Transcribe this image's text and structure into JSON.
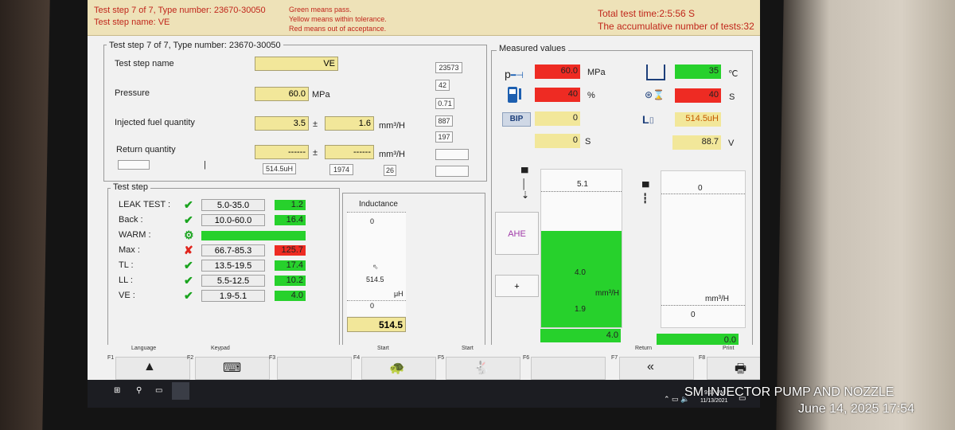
{
  "header": {
    "line1": "Test step 7 of 7, Type number: 23670-30050",
    "line2": "Test step name: VE",
    "legend": [
      "Green means pass.",
      "Yellow means within tolerance.",
      "Red means out of acceptance."
    ],
    "total_time": "Total test time:2:5:56 S",
    "accumulative": "The accumulative number of tests:32"
  },
  "step_panel": {
    "title": "Test step 7 of 7, Type number: 23670-30050",
    "step_name_label": "Test step name",
    "step_name_value": "VE",
    "pressure_label": "Pressure",
    "pressure_value": "60.0",
    "pressure_unit": "MPa",
    "injected_label": "Injected fuel quantity",
    "injected_value": "3.5",
    "injected_tol": "1.6",
    "pm": "±",
    "qty_unit": "mm³/H",
    "return_label": "Return quantity",
    "return_value": "------",
    "return_tol": "------",
    "return_unit": "mm³/H",
    "side_boxes": [
      "23573",
      "42",
      "0.71",
      "887",
      "197",
      "",
      ""
    ],
    "bottom_boxes": [
      "514.5uH",
      "1974",
      "26"
    ],
    "separator": "|"
  },
  "test_step": {
    "title": "Test step",
    "rows": [
      {
        "name": "LEAK TEST :",
        "status": "pass",
        "range": "5.0-35.0",
        "value": "1.2",
        "color": "#27d12c"
      },
      {
        "name": "Back :",
        "status": "pass",
        "range": "10.0-60.0",
        "value": "16.4",
        "color": "#27d12c"
      },
      {
        "name": "WARM :",
        "status": "running",
        "range": "",
        "value": "",
        "color": "#27d12c"
      },
      {
        "name": "Max :",
        "status": "fail",
        "range": "66.7-85.3",
        "value": "125.7",
        "color": "#ee2b23"
      },
      {
        "name": "TL :",
        "status": "pass",
        "range": "13.5-19.5",
        "value": "17.4",
        "color": "#27d12c"
      },
      {
        "name": "LL :",
        "status": "pass",
        "range": "5.5-12.5",
        "value": "10.2",
        "color": "#27d12c"
      },
      {
        "name": "VE :",
        "status": "pass",
        "range": "1.9-5.1",
        "value": "4.0",
        "color": "#27d12c"
      }
    ]
  },
  "inductance": {
    "title": "Inductance",
    "top": "0",
    "mid": "514.5",
    "unit": "μH",
    "bottom": "0",
    "readout": "514.5"
  },
  "measured": {
    "title": "Measured values",
    "p_label": "p",
    "p_value": "60.0",
    "p_unit": "MPa",
    "pump_value": "40",
    "pump_unit": "%",
    "bip_label": "BIP",
    "bip_value": "0",
    "s_value": "0",
    "s_unit": "S",
    "temp_value": "35",
    "temp_unit": "℃",
    "time_value": "40",
    "time_unit": "S",
    "l_label": "L",
    "l_value": "514.5uH",
    "volt_value": "88.7",
    "volt_unit": "V"
  },
  "gauges": {
    "left_top": "5.1",
    "left_value": "4.0",
    "left_unit": "mm³/H",
    "left_low": "1.9",
    "left_readout": "4.0",
    "left_fill_fraction": 0.61,
    "ahe_label": "AHE",
    "plus_label": "+",
    "right_top": "0",
    "right_unit": "mm³/H",
    "right_low": "0",
    "right_readout": "0.0"
  },
  "fkeys": [
    {
      "key": "F1",
      "label": "Language"
    },
    {
      "key": "F2",
      "label": "Keypad"
    },
    {
      "key": "F3",
      "label": ""
    },
    {
      "key": "F4",
      "label": "Start"
    },
    {
      "key": "F5",
      "label": "Start"
    },
    {
      "key": "F6",
      "label": ""
    },
    {
      "key": "F7",
      "label": "Return"
    },
    {
      "key": "F8",
      "label": "Print"
    }
  ],
  "taskbar": {
    "time": "9:17 PM",
    "date": "11/13/2021"
  },
  "overlay": {
    "brand": "SM INJECTOR PUMP AND NOZZLE",
    "stamp": "June 14, 2025 17:54"
  }
}
